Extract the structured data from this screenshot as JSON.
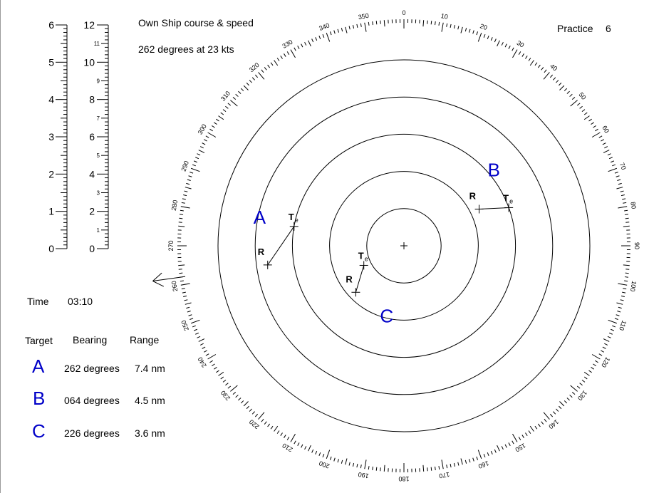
{
  "own_ship": {
    "label": "Own Ship course & speed",
    "value": "262 degrees at 23 kts"
  },
  "practice": {
    "label": "Practice",
    "number": "6"
  },
  "time": {
    "label": "Time",
    "value": "03:10"
  },
  "table": {
    "headers": [
      "Target",
      "Bearing",
      "Range"
    ],
    "rows": [
      {
        "target": "A",
        "bearing": "262 degrees",
        "range": "7.4 nm"
      },
      {
        "target": "B",
        "bearing": "064 degrees",
        "range": "4.5 nm"
      },
      {
        "target": "C",
        "bearing": "226 degrees",
        "range": "3.6 nm"
      }
    ]
  },
  "scales": {
    "left": {
      "min": 0,
      "max": 6,
      "labels": [
        "0",
        "1",
        "2",
        "3",
        "4",
        "5",
        "6"
      ]
    },
    "right": {
      "min": 0,
      "max": 12,
      "major_labels": [
        "0",
        "2",
        "4",
        "6",
        "8",
        "10",
        "12"
      ],
      "minor_labels": [
        "1",
        "3",
        "5",
        "7",
        "9",
        "11"
      ]
    }
  },
  "compass": {
    "rings": 5,
    "bearing_labels_every_deg": 10
  },
  "own_ship_heading_deg": 262,
  "plot_labels": {
    "R": "R",
    "T": "T",
    "T_sub": "e"
  },
  "targets": [
    {
      "name": "A",
      "label": "A",
      "R": {
        "bearing": 262,
        "range": 7.4
      },
      "Te": {
        "bearing": 280,
        "range": 6.0
      }
    },
    {
      "name": "B",
      "label": "B",
      "R": {
        "bearing": 64,
        "range": 4.5
      },
      "Te": {
        "bearing": 70,
        "range": 6.0
      }
    },
    {
      "name": "C",
      "label": "C",
      "R": {
        "bearing": 226,
        "range": 3.6
      },
      "Te": {
        "bearing": 244,
        "range": 2.4
      }
    }
  ],
  "colors": {
    "target_letters": "#0000c8",
    "lines": "#000000"
  }
}
